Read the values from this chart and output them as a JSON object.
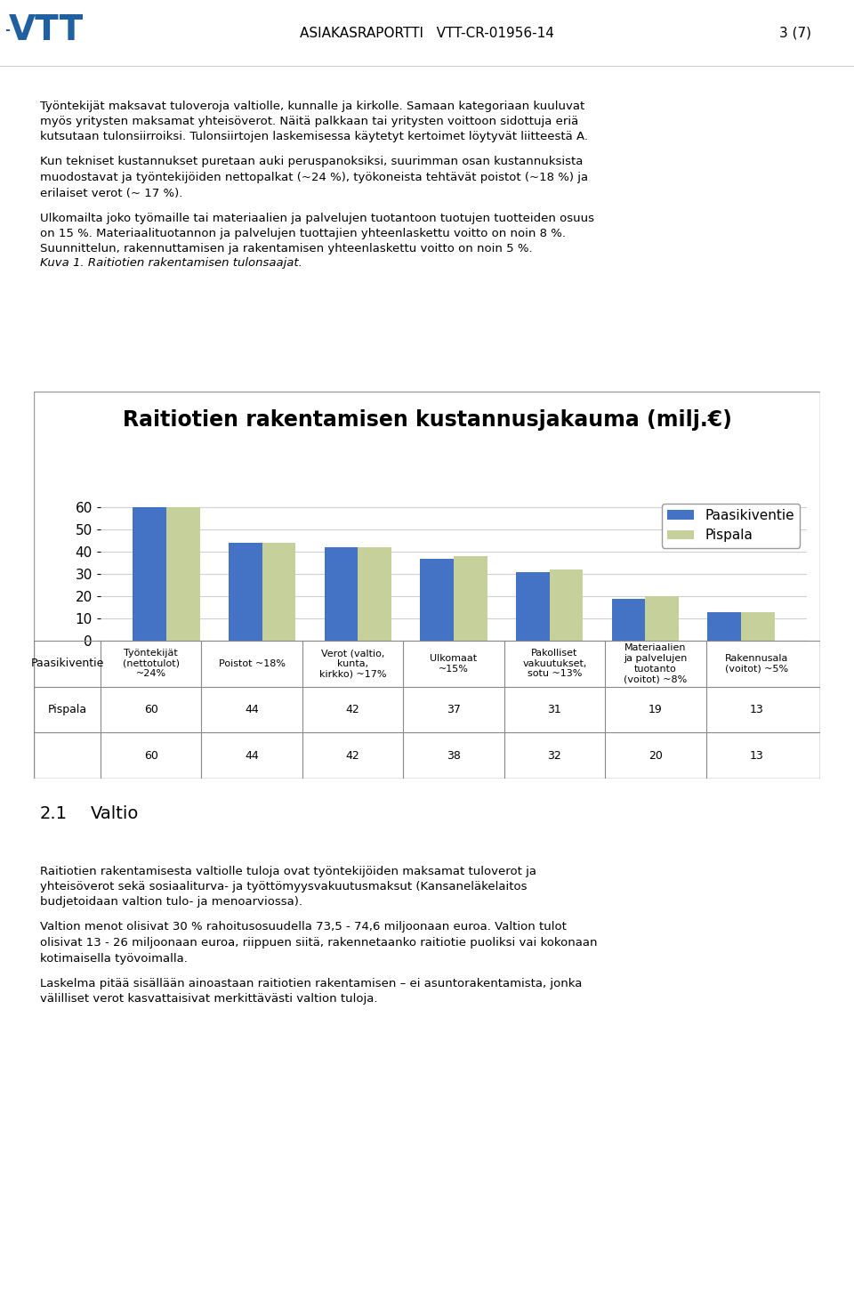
{
  "title": "Raitiotien rakentamisen kustannusjakauma (milj.€)",
  "header_text": "ASIAKASRAPORTTI   VTT-CR-01956-14",
  "page_text": "3 (7)",
  "categories": [
    "Työntekijät\n(nettotulot)\n~24%",
    "Poistot ~18%",
    "Verot (valtio,\nkunta,\nkirkko) ~17%",
    "Ulkomaat\n~15%",
    "Pakolliset\nvakuutukset,\nsotu ~13%",
    "Materiaalien\nja palvelujen\ntuotanto\n(voitot) ~8%",
    "Rakennusala\n(voitot) ~5%"
  ],
  "paasikiventie": [
    60,
    44,
    42,
    37,
    31,
    19,
    13
  ],
  "pispala": [
    60,
    44,
    42,
    38,
    32,
    20,
    13
  ],
  "paasikiventie_color": "#4472C4",
  "pispala_color": "#C5D09B",
  "ylim": [
    0,
    65
  ],
  "yticks": [
    0,
    10,
    20,
    30,
    40,
    50,
    60
  ],
  "legend_paasikiventie": "Paasikiventie",
  "legend_pispala": "Pispala",
  "table_row1_label": "Paasikiventie",
  "table_row2_label": "Pispala",
  "body_line1": "Työntekijät maksavat tuloveroja valtiolle, kunnalle ja kirkolle. Samaan kategoriaan kuuluvat",
  "body_line2": "myös yritysten maksamat yhteisöverot. Näitä palkkaan tai yritysten voittoon sidottuja eriä",
  "body_line3": "kutsutaan tulonsiirroiksi. Tulonsiirtojen laskemisessa käytetyt kertoimet löytyvät liitteestä A.",
  "body_line4": "Kun tekniset kustannukset puretaan auki peruspanoksiksi, suurimman osan kustannuksista",
  "body_line5": "muodostavat ja työntekijöiden nettopalkat (~24 %), työkoneista tehtävät poistot (~18 %) ja",
  "body_line6": "erilaiset verot (~ 17 %).",
  "body_line7": "Ulkomailta joko työmaille tai materiaalien ja palvelujen tuotantoon tuotujen tuotteiden osuus",
  "body_line8": "on 15 %. Materiaalituotannon ja palvelujen tuottajien yhteenlaskettu voitto on noin 8 %.",
  "body_line9": "Suunnittelun, rakennuttamisen ja rakentamisen yhteenlaskettu voitto on noin 5 %.",
  "caption_text": "Kuva 1. Raitiotien rakentamisen tulonsaajat.",
  "sec_label": "2.1",
  "sec_title": "Valtio",
  "sec_line1": "Raitiotien rakentamisesta valtiolle tuloja ovat työntekijöiden maksamat tuloverot ja",
  "sec_line2": "yhteisöverot sekä sosiaaliturva- ja työttömyysvakuutusmaksut (Kansaneläkelaitos",
  "sec_line3": "budjetoidaan valtion tulo- ja menoarviossa).",
  "sec_line4": "Valtion menot olisivat 30 % rahoitusosuudella 73,5 - 74,6 miljoonaan euroa. Valtion tulot",
  "sec_line5": "olisivat 13 - 26 miljoonaan euroa, riippuen siitä, rakennetaanko raitiotie puoliksi vai kokonaan",
  "sec_line6": "kotimaisella työvoimalla.",
  "sec_line7": "Laskelma pitää sisällään ainoastaan raitiotien rakentamisen – ei asuntorakentamista, jonka",
  "sec_line8": "välilliset verot kasvattaisivat merkittävästi valtion tuloja."
}
